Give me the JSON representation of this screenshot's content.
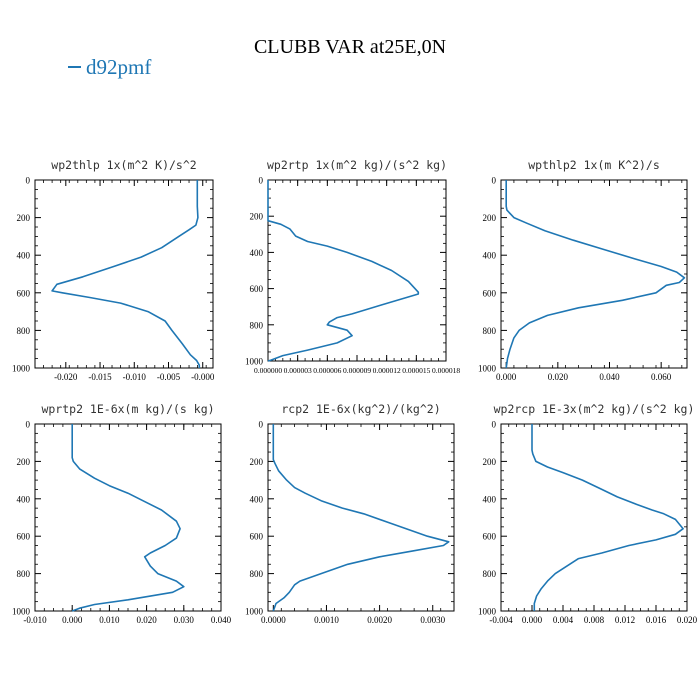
{
  "title": "CLUBB VAR at25E,0N",
  "legend": {
    "label": "d92pmf",
    "color": "#1f77b4"
  },
  "chart_data": [
    {
      "type": "line",
      "title": "wp2thlp  1x(m^2 K)/s^2",
      "xlim": [
        -0.0245,
        0.0015
      ],
      "xticks": [
        -0.02,
        -0.015,
        -0.01,
        -0.005,
        -0.0
      ],
      "xtick_labels": [
        "-0.020",
        "-0.015",
        "-0.010",
        "-0.005",
        "-0.000"
      ],
      "ylim": [
        1000,
        0
      ],
      "yticks": [
        0,
        200,
        400,
        600,
        800,
        1000
      ],
      "series": [
        {
          "color": "#1f77b4",
          "points": [
            [
              -0.0008,
              0
            ],
            [
              -0.0008,
              140
            ],
            [
              -0.0007,
              200
            ],
            [
              -0.001,
              240
            ],
            [
              -0.002,
              265
            ],
            [
              -0.0035,
              300
            ],
            [
              -0.006,
              360
            ],
            [
              -0.009,
              410
            ],
            [
              -0.013,
              460
            ],
            [
              -0.0175,
              515
            ],
            [
              -0.0213,
              555
            ],
            [
              -0.022,
              590
            ],
            [
              -0.0205,
              600
            ],
            [
              -0.0165,
              625
            ],
            [
              -0.012,
              655
            ],
            [
              -0.008,
              700
            ],
            [
              -0.0055,
              750
            ],
            [
              -0.0045,
              800
            ],
            [
              -0.003,
              870
            ],
            [
              -0.0018,
              930
            ],
            [
              -0.0009,
              960
            ],
            [
              -0.0005,
              985
            ],
            [
              -0.0005,
              1000
            ]
          ]
        }
      ]
    },
    {
      "type": "line",
      "title": "wp2rtp  1x(m^2 kg)/(s^2 kg)",
      "xlim": [
        0,
        1.8e-05
      ],
      "xticks": [
        0,
        3e-06,
        6e-06,
        9e-06,
        1.2e-05,
        1.5e-05,
        1.8e-05
      ],
      "xtick_labels": [
        "0.000000",
        "0.000003",
        "0.000006",
        "0.000009",
        "0.000012",
        "0.000015",
        "0.000018"
      ],
      "ylim": [
        1000,
        0
      ],
      "yticks": [
        0,
        200,
        400,
        600,
        800,
        1000
      ],
      "series": [
        {
          "color": "#1f77b4",
          "points": [
            [
              0,
              0
            ],
            [
              0,
              200
            ],
            [
              2e-09,
              225
            ],
            [
              1.3e-06,
              245
            ],
            [
              2.2e-06,
              270
            ],
            [
              2.8e-06,
              310
            ],
            [
              4e-06,
              340
            ],
            [
              6e-06,
              365
            ],
            [
              8e-06,
              400
            ],
            [
              1.05e-05,
              450
            ],
            [
              1.25e-05,
              500
            ],
            [
              1.42e-05,
              560
            ],
            [
              1.52e-05,
              620
            ],
            [
              1.52e-05,
              630
            ],
            [
              1.15e-05,
              690
            ],
            [
              8.5e-06,
              740
            ],
            [
              7e-06,
              760
            ],
            [
              6.2e-06,
              785
            ],
            [
              6e-06,
              800
            ],
            [
              8e-06,
              830
            ],
            [
              8.5e-06,
              860
            ],
            [
              7e-06,
              900
            ],
            [
              4e-06,
              940
            ],
            [
              1.5e-06,
              970
            ],
            [
              3e-07,
              995
            ],
            [
              0,
              1000
            ]
          ]
        }
      ]
    },
    {
      "type": "line",
      "title": "wpthlp2  1x(m K^2)/s",
      "xlim": [
        -0.002,
        0.07
      ],
      "xticks": [
        0.0,
        0.02,
        0.04,
        0.06
      ],
      "xtick_labels": [
        "0.000",
        "0.020",
        "0.040",
        "0.060"
      ],
      "ylim": [
        1000,
        0
      ],
      "yticks": [
        0,
        200,
        400,
        600,
        800,
        1000
      ],
      "series": [
        {
          "color": "#1f77b4",
          "points": [
            [
              0,
              0
            ],
            [
              0,
              140
            ],
            [
              0.0003,
              160
            ],
            [
              0.003,
              200
            ],
            [
              0.008,
              230
            ],
            [
              0.015,
              270
            ],
            [
              0.026,
              320
            ],
            [
              0.038,
              370
            ],
            [
              0.05,
              420
            ],
            [
              0.06,
              460
            ],
            [
              0.066,
              490
            ],
            [
              0.069,
              520
            ],
            [
              0.067,
              545
            ],
            [
              0.062,
              560
            ],
            [
              0.058,
              600
            ],
            [
              0.045,
              640
            ],
            [
              0.028,
              680
            ],
            [
              0.016,
              720
            ],
            [
              0.009,
              760
            ],
            [
              0.005,
              800
            ],
            [
              0.003,
              840
            ],
            [
              0.0015,
              900
            ],
            [
              0.0005,
              950
            ],
            [
              0,
              1000
            ]
          ]
        }
      ]
    },
    {
      "type": "line",
      "title": "wprtp2  1E-6x(m kg)/(s kg)",
      "xlim": [
        -0.01,
        0.04
      ],
      "xticks": [
        -0.01,
        0.0,
        0.01,
        0.02,
        0.03,
        0.04
      ],
      "xtick_labels": [
        "-0.010",
        "0.000",
        "0.010",
        "0.020",
        "0.030",
        "0.040"
      ],
      "ylim": [
        1000,
        0
      ],
      "yticks": [
        0,
        200,
        400,
        600,
        800,
        1000
      ],
      "series": [
        {
          "color": "#1f77b4",
          "points": [
            [
              0,
              0
            ],
            [
              0,
              180
            ],
            [
              0.0003,
              200
            ],
            [
              0.002,
              240
            ],
            [
              0.006,
              290
            ],
            [
              0.01,
              330
            ],
            [
              0.015,
              370
            ],
            [
              0.019,
              410
            ],
            [
              0.024,
              460
            ],
            [
              0.028,
              520
            ],
            [
              0.029,
              560
            ],
            [
              0.028,
              610
            ],
            [
              0.025,
              650
            ],
            [
              0.021,
              690
            ],
            [
              0.0195,
              710
            ],
            [
              0.021,
              760
            ],
            [
              0.023,
              800
            ],
            [
              0.028,
              840
            ],
            [
              0.03,
              870
            ],
            [
              0.027,
              900
            ],
            [
              0.015,
              940
            ],
            [
              0.006,
              965
            ],
            [
              0.002,
              985
            ],
            [
              0,
              1000
            ]
          ]
        }
      ]
    },
    {
      "type": "line",
      "title": "rcp2  1E-6x(kg^2)/(kg^2)",
      "xlim": [
        -0.0001,
        0.0034
      ],
      "xticks": [
        0.0,
        0.001,
        0.002,
        0.003
      ],
      "xtick_labels": [
        "0.0000",
        "0.0010",
        "0.0020",
        "0.0030"
      ],
      "ylim": [
        1000,
        0
      ],
      "yticks": [
        0,
        200,
        400,
        600,
        800,
        1000
      ],
      "series": [
        {
          "color": "#1f77b4",
          "points": [
            [
              0,
              0
            ],
            [
              0,
              190
            ],
            [
              3e-05,
              210
            ],
            [
              0.0001,
              250
            ],
            [
              0.00025,
              300
            ],
            [
              0.0004,
              340
            ],
            [
              0.0006,
              370
            ],
            [
              0.0009,
              410
            ],
            [
              0.0013,
              450
            ],
            [
              0.0017,
              480
            ],
            [
              0.0022,
              530
            ],
            [
              0.0026,
              570
            ],
            [
              0.0029,
              600
            ],
            [
              0.0033,
              630
            ],
            [
              0.0032,
              650
            ],
            [
              0.0026,
              680
            ],
            [
              0.002,
              710
            ],
            [
              0.0014,
              750
            ],
            [
              0.0009,
              800
            ],
            [
              0.0005,
              840
            ],
            [
              0.0004,
              860
            ],
            [
              0.0003,
              900
            ],
            [
              0.0002,
              930
            ],
            [
              5e-05,
              960
            ],
            [
              0,
              1000
            ]
          ]
        }
      ]
    },
    {
      "type": "line",
      "title": "wp2rcp  1E-3x(m^2 kg)/(s^2 kg)",
      "xlim": [
        -0.004,
        0.02
      ],
      "xticks": [
        -0.004,
        0.0,
        0.004,
        0.008,
        0.012,
        0.016,
        0.02
      ],
      "xtick_labels": [
        "-0.004",
        "0.000",
        "0.004",
        "0.008",
        "0.012",
        "0.016",
        "0.020"
      ],
      "ylim": [
        1000,
        0
      ],
      "yticks": [
        0,
        200,
        400,
        600,
        800,
        1000
      ],
      "series": [
        {
          "color": "#1f77b4",
          "points": [
            [
              0,
              0
            ],
            [
              0,
              140
            ],
            [
              0.0001,
              160
            ],
            [
              0.0005,
              200
            ],
            [
              0.002,
              230
            ],
            [
              0.004,
              260
            ],
            [
              0.0065,
              300
            ],
            [
              0.009,
              350
            ],
            [
              0.011,
              390
            ],
            [
              0.0135,
              430
            ],
            [
              0.0155,
              460
            ],
            [
              0.017,
              480
            ],
            [
              0.0185,
              510
            ],
            [
              0.0195,
              560
            ],
            [
              0.0185,
              590
            ],
            [
              0.016,
              620
            ],
            [
              0.0125,
              650
            ],
            [
              0.009,
              690
            ],
            [
              0.006,
              720
            ],
            [
              0.0045,
              760
            ],
            [
              0.003,
              800
            ],
            [
              0.002,
              840
            ],
            [
              0.0012,
              880
            ],
            [
              0.0006,
              920
            ],
            [
              0.0003,
              960
            ],
            [
              0.0003,
              1000
            ]
          ]
        }
      ]
    }
  ]
}
